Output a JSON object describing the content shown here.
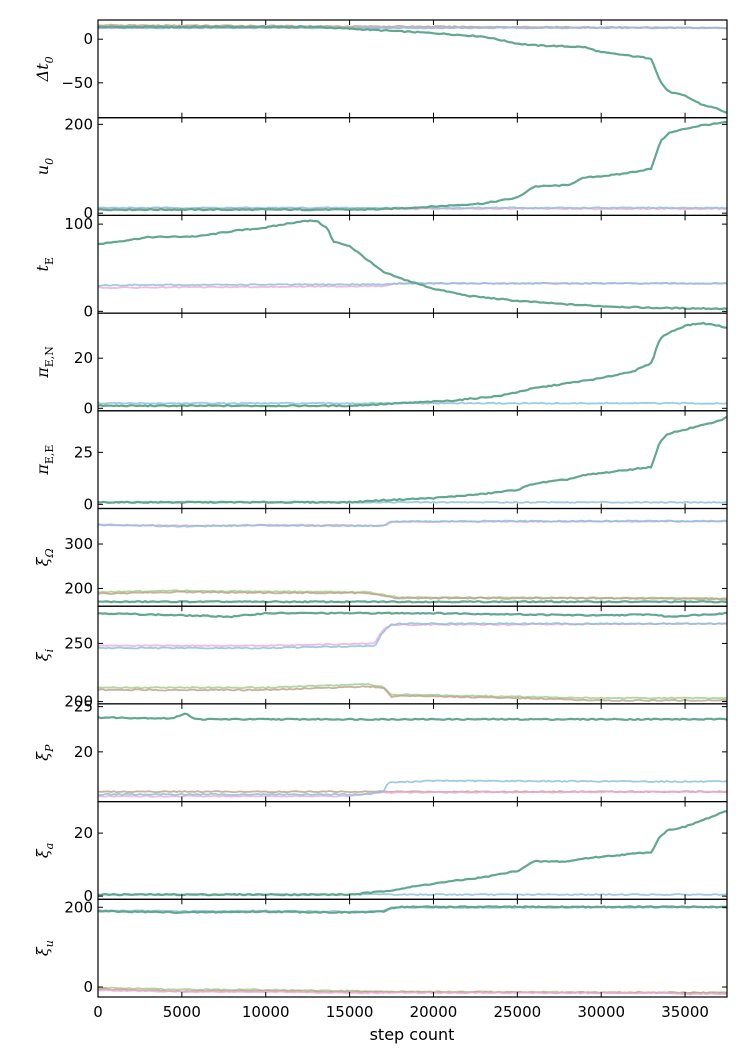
{
  "chart_data": {
    "type": "line",
    "title": "",
    "xlabel": "step count",
    "xlim": [
      0,
      37500
    ],
    "xticks": [
      0,
      5000,
      10000,
      15000,
      20000,
      25000,
      30000,
      35000
    ],
    "series_colors": [
      "#5aa38b",
      "#87bedb",
      "#f0a8d8",
      "#bc9d84",
      "#9ccc8a"
    ],
    "panels": [
      {
        "ylabel": "Δt₀",
        "ylim": [
          -90,
          22
        ],
        "yticks": [
          0,
          -50
        ],
        "series": [
          {
            "x": [
              0,
              13000,
              16000,
              20000,
              23000,
              25000,
              26000,
              29000,
              30000,
              33000,
              33500,
              34000,
              35000,
              36000,
              37000,
              37500
            ],
            "y": [
              14,
              14,
              11,
              7,
              3,
              -5,
              -7,
              -9,
              -15,
              -22,
              -48,
              -60,
              -65,
              -75,
              -80,
              -85
            ]
          },
          {
            "x": [
              0,
              37500
            ],
            "y": [
              13,
              13
            ]
          },
          {
            "x": [
              0,
              37500
            ],
            "y": [
              13,
              13
            ]
          },
          {
            "x": [
              0,
              13000,
              37500
            ],
            "y": [
              16,
              15,
              13
            ]
          }
        ]
      },
      {
        "ylabel": "u₀",
        "ylim": [
          -5,
          215
        ],
        "yticks": [
          0,
          200
        ],
        "series": [
          {
            "x": [
              0,
              15000,
              17000,
              20000,
              23000,
              25000,
              26000,
              28000,
              29000,
              31000,
              33000,
              33500,
              34000,
              35000,
              36000,
              37000,
              37500
            ],
            "y": [
              8,
              8,
              9,
              15,
              22,
              35,
              60,
              63,
              80,
              87,
              100,
              160,
              180,
              190,
              198,
              202,
              205
            ]
          },
          {
            "x": [
              0,
              37500
            ],
            "y": [
              12,
              12
            ]
          },
          {
            "x": [
              0,
              37500
            ],
            "y": [
              10,
              10
            ]
          }
        ]
      },
      {
        "ylabel": "tE",
        "ylim": [
          -2,
          110
        ],
        "yticks": [
          0,
          100
        ],
        "series": [
          {
            "x": [
              0,
              3000,
              6000,
              8000,
              10000,
              12000,
              13000,
              13700,
              14000,
              15000,
              16000,
              17000,
              18000,
              20000,
              22000,
              25000,
              28000,
              30000,
              33000,
              37500
            ],
            "y": [
              77,
              85,
              86,
              92,
              96,
              103,
              104,
              95,
              80,
              75,
              60,
              45,
              38,
              26,
              18,
              12,
              8,
              6,
              4,
              3
            ]
          },
          {
            "x": [
              0,
              17000,
              18000,
              37500
            ],
            "y": [
              30,
              31,
              32,
              32
            ]
          },
          {
            "x": [
              0,
              17000,
              18000,
              37500
            ],
            "y": [
              27,
              29,
              32,
              32
            ]
          }
        ]
      },
      {
        "ylabel": "πE,N",
        "ylim": [
          -1,
          38
        ],
        "yticks": [
          0,
          20
        ],
        "series": [
          {
            "x": [
              0,
              15000,
              18000,
              21000,
              24000,
              26000,
              28000,
              30000,
              32000,
              33000,
              33500,
              34000,
              35000,
              36000,
              37000,
              37500
            ],
            "y": [
              1,
              1,
              2,
              3,
              5,
              8,
              10,
              12,
              15,
              18,
              28,
              30,
              33,
              34,
              33,
              32
            ]
          },
          {
            "x": [
              0,
              37500
            ],
            "y": [
              2,
              2
            ]
          }
        ]
      },
      {
        "ylabel": "πE,E",
        "ylim": [
          -2,
          45
        ],
        "yticks": [
          0,
          25
        ],
        "series": [
          {
            "x": [
              0,
              15000,
              17000,
              20000,
              23000,
              25000,
              26000,
              28000,
              29000,
              31000,
              33000,
              33500,
              34000,
              35000,
              36000,
              37000,
              37500
            ],
            "y": [
              1,
              1,
              2,
              3,
              5,
              7,
              10,
              12,
              14,
              16,
              18,
              30,
              34,
              36,
              38,
              40,
              42
            ]
          },
          {
            "x": [
              0,
              37500
            ],
            "y": [
              1,
              1
            ]
          }
        ]
      },
      {
        "ylabel": "ξΩ",
        "ylim": [
          160,
          380
        ],
        "yticks": [
          200,
          300
        ],
        "series": [
          {
            "x": [
              0,
              37500
            ],
            "y": [
              170,
              170
            ]
          },
          {
            "x": [
              0,
              5000,
              10000,
              15000,
              17000,
              17500,
              18000,
              37500
            ],
            "y": [
              343,
              340,
              342,
              341,
              341,
              350,
              351,
              352
            ]
          },
          {
            "x": [
              0,
              5000,
              10000,
              15000,
              17000,
              17500,
              37500
            ],
            "y": [
              344,
              341,
              343,
              342,
              342,
              350,
              351
            ]
          },
          {
            "x": [
              0,
              5000,
              10000,
              16000,
              17500,
              18000,
              30000,
              37500
            ],
            "y": [
              188,
              192,
              190,
              190,
              180,
              178,
              178,
              176
            ]
          },
          {
            "x": [
              0,
              5000,
              10000,
              16000,
              17500,
              18000,
              37500
            ],
            "y": [
              192,
              195,
              193,
              192,
              183,
              180,
              178
            ]
          }
        ]
      },
      {
        "ylabel": "ξi",
        "ylim": [
          198,
          282
        ],
        "yticks": [
          200,
          250
        ],
        "series": [
          {
            "x": [
              0,
              8000,
              10000,
              20000,
              30000,
              33000,
              34000,
              37500
            ],
            "y": [
              276,
              273,
              276,
              276,
              274,
              275,
              273,
              276
            ]
          },
          {
            "x": [
              0,
              10000,
              16500,
              17000,
              17500,
              18000,
              37500
            ],
            "y": [
              246,
              246,
              248,
              260,
              266,
              267,
              267
            ]
          },
          {
            "x": [
              0,
              10000,
              16500,
              17000,
              17500,
              37500
            ],
            "y": [
              248,
              248,
              250,
              262,
              266,
              267
            ]
          },
          {
            "x": [
              0,
              10000,
              16000,
              17000,
              17500,
              18000,
              25000,
              30000,
              37500
            ],
            "y": [
              210,
              210,
              213,
              212,
              204,
              205,
              203,
              201,
              201
            ]
          },
          {
            "x": [
              0,
              10000,
              16000,
              17000,
              17500,
              18000,
              30000,
              37500
            ],
            "y": [
              212,
              212,
              215,
              213,
              206,
              206,
              203,
              203
            ]
          }
        ]
      },
      {
        "ylabel": "ξP",
        "ylim": [
          14.5,
          25.3
        ],
        "yticks": [
          20,
          25
        ],
        "series": [
          {
            "x": [
              0,
              4500,
              5200,
              5800,
              8000,
              37500
            ],
            "y": [
              23.8,
              23.7,
              24.3,
              23.6,
              23.6,
              23.6
            ]
          },
          {
            "x": [
              0,
              16000,
              17000,
              17300,
              20000,
              37500
            ],
            "y": [
              15.3,
              15.3,
              15.6,
              16.6,
              16.8,
              16.7
            ]
          },
          {
            "x": [
              0,
              15000,
              16500,
              37500
            ],
            "y": [
              15.1,
              15.1,
              15.5,
              15.6
            ]
          },
          {
            "x": [
              0,
              37500
            ],
            "y": [
              15.6,
              15.6
            ]
          }
        ]
      },
      {
        "ylabel": "ξa",
        "ylim": [
          -1,
          30
        ],
        "yticks": [
          0,
          20
        ],
        "series": [
          {
            "x": [
              0,
              15000,
              17000,
              20000,
              23000,
              25000,
              26000,
              28000,
              29000,
              31000,
              33000,
              33500,
              34000,
              35000,
              36000,
              37000,
              37500
            ],
            "y": [
              0.5,
              0.5,
              1.5,
              4,
              6,
              8,
              11,
              11,
              12,
              13,
              14,
              19,
              21,
              22,
              24,
              26,
              27
            ]
          },
          {
            "x": [
              0,
              37500
            ],
            "y": [
              0.5,
              0.5
            ]
          }
        ]
      },
      {
        "ylabel": "ξu",
        "ylim": [
          -25,
          220
        ],
        "yticks": [
          0,
          200
        ],
        "series": [
          {
            "x": [
              0,
              5000,
              10000,
              15000,
              17000,
              17500,
              18000,
              37500
            ],
            "y": [
              190,
              187,
              189,
              187,
              189,
              198,
              201,
              201
            ]
          },
          {
            "x": [
              0,
              5000,
              10000,
              15000,
              17000,
              17500,
              37500
            ],
            "y": [
              192,
              190,
              191,
              189,
              190,
              199,
              200
            ]
          },
          {
            "x": [
              0,
              5000,
              10000,
              15000,
              20000,
              30000,
              34000,
              35000,
              37500
            ],
            "y": [
              -8,
              -12,
              -12,
              -15,
              -14,
              -15,
              -14,
              -18,
              -17
            ]
          },
          {
            "x": [
              0,
              5000,
              10000,
              15000,
              20000,
              30000,
              37500
            ],
            "y": [
              -5,
              -10,
              -9,
              -12,
              -13,
              -14,
              -15
            ]
          },
          {
            "x": [
              0,
              5000,
              10000,
              15000,
              20000,
              30000,
              37500
            ],
            "y": [
              -2,
              -6,
              -7,
              -10,
              -12,
              -13,
              -14
            ]
          }
        ]
      }
    ]
  }
}
